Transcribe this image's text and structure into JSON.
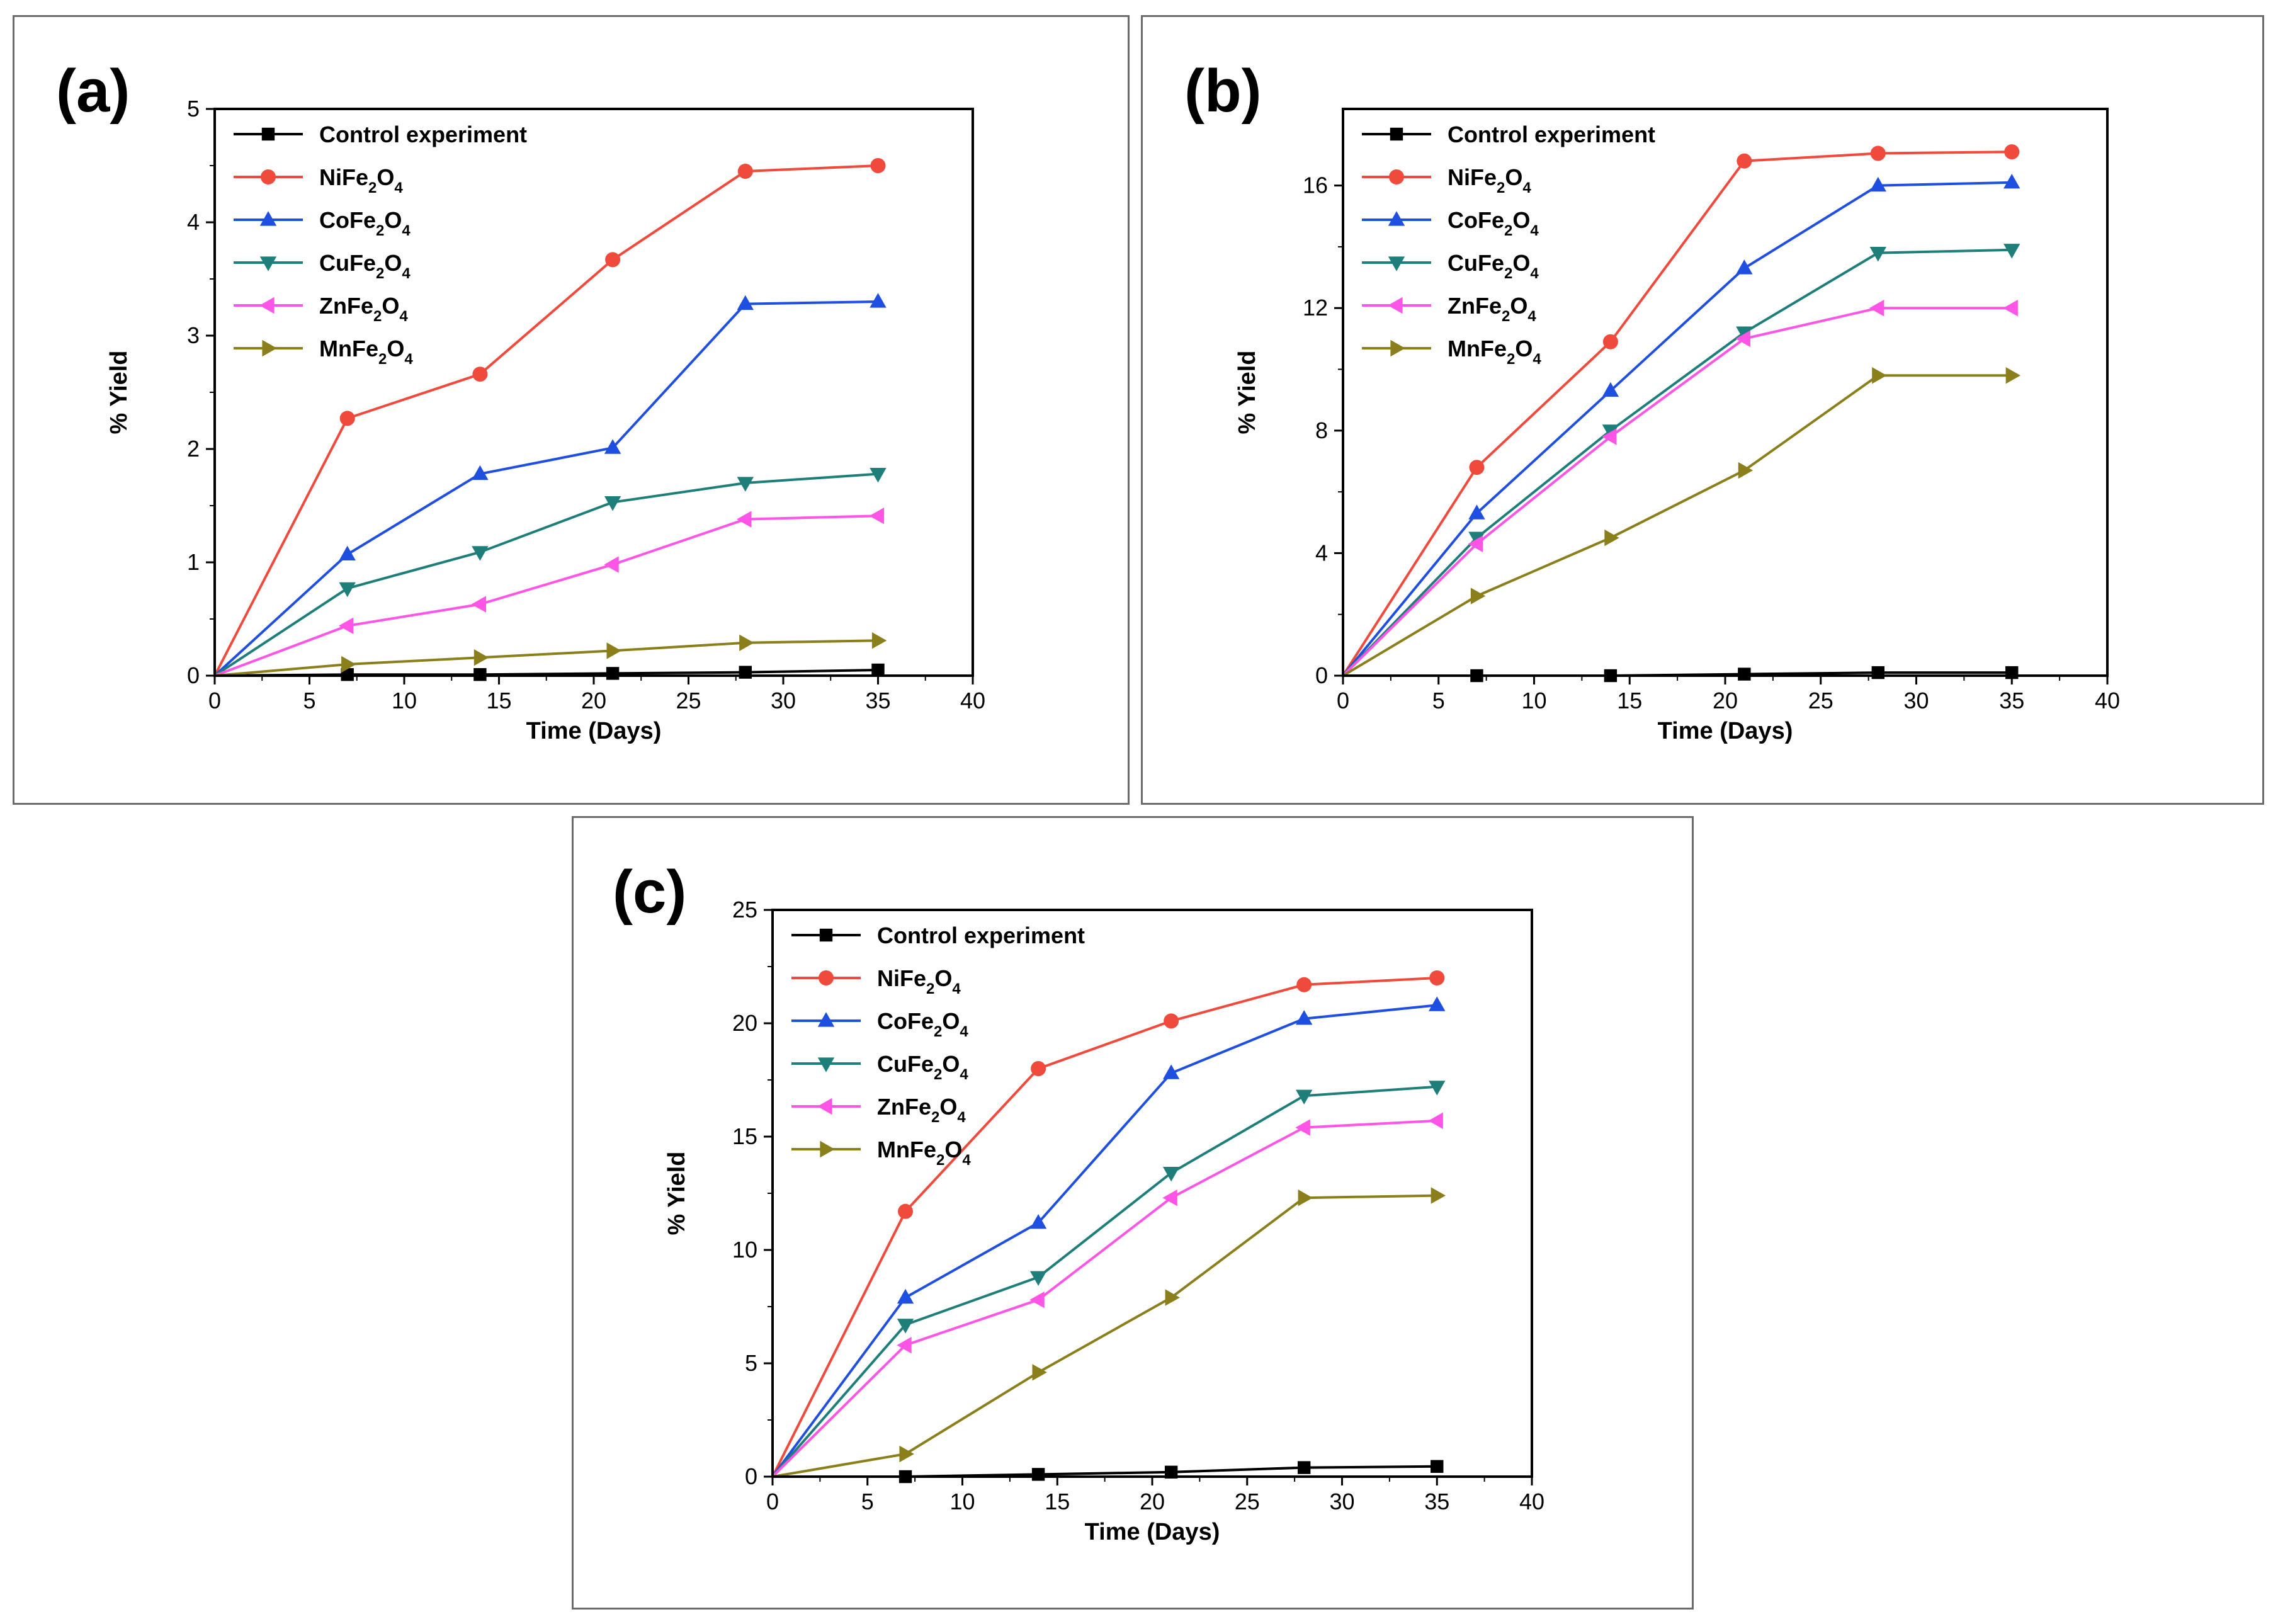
{
  "chart_data": [
    {
      "panel_label": "(a)",
      "type": "line",
      "xlabel": "Time (Days)",
      "ylabel": "% Yield",
      "xlim": [
        0,
        40
      ],
      "ylim": [
        0,
        5
      ],
      "xticks": [
        0,
        5,
        10,
        15,
        20,
        25,
        30,
        35,
        40
      ],
      "yticks": [
        0,
        1,
        2,
        3,
        4,
        5
      ],
      "x": [
        0,
        7,
        14,
        21,
        28,
        35
      ],
      "legend_position": "top-left",
      "series": [
        {
          "name": "Control experiment",
          "base": "Control experiment",
          "sub": "",
          "color": "#000000",
          "marker": "square",
          "values": [
            0,
            0.01,
            0.01,
            0.02,
            0.03,
            0.05
          ]
        },
        {
          "name": "NiFe2O4",
          "base": "NiFe",
          "sub": "2",
          "tail": "O",
          "sub2": "4",
          "color": "#f04a3c",
          "marker": "circle",
          "values": [
            0,
            2.27,
            2.66,
            3.67,
            4.45,
            4.5
          ]
        },
        {
          "name": "CoFe2O4",
          "base": "CoFe",
          "sub": "2",
          "tail": "O",
          "sub2": "4",
          "color": "#1f4fe0",
          "marker": "triangle-up",
          "values": [
            0,
            1.07,
            1.78,
            2.01,
            3.28,
            3.3
          ]
        },
        {
          "name": "CuFe2O4",
          "base": "CuFe",
          "sub": "2",
          "tail": "O",
          "sub2": "4",
          "color": "#1e7f7a",
          "marker": "triangle-down",
          "values": [
            0,
            0.77,
            1.09,
            1.53,
            1.7,
            1.78
          ]
        },
        {
          "name": "ZnFe2O4",
          "base": "ZnFe",
          "sub": "2",
          "tail": "O",
          "sub2": "4",
          "color": "#ff55e6",
          "marker": "triangle-left",
          "values": [
            0,
            0.44,
            0.63,
            0.98,
            1.38,
            1.41
          ]
        },
        {
          "name": "MnFe2O4",
          "base": "MnFe",
          "sub": "2",
          "tail": "O",
          "sub2": "4",
          "color": "#8a7f1a",
          "marker": "triangle-right",
          "values": [
            0,
            0.1,
            0.16,
            0.22,
            0.29,
            0.31
          ]
        }
      ]
    },
    {
      "panel_label": "(b)",
      "type": "line",
      "xlabel": "Time (Days)",
      "ylabel": "% Yield",
      "xlim": [
        0,
        40
      ],
      "ylim": [
        0,
        18.5
      ],
      "xticks": [
        0,
        5,
        10,
        15,
        20,
        25,
        30,
        35,
        40
      ],
      "yticks": [
        0,
        4,
        8,
        12,
        16
      ],
      "x": [
        0,
        7,
        14,
        21,
        28,
        35
      ],
      "legend_position": "top-left",
      "series": [
        {
          "name": "Control experiment",
          "base": "Control experiment",
          "sub": "",
          "color": "#000000",
          "marker": "square",
          "values": [
            0,
            0.0,
            0.0,
            0.05,
            0.1,
            0.1
          ]
        },
        {
          "name": "NiFe2O4",
          "base": "NiFe",
          "sub": "2",
          "tail": "O",
          "sub2": "4",
          "color": "#f04a3c",
          "marker": "circle",
          "values": [
            0,
            6.8,
            10.9,
            16.8,
            17.05,
            17.1
          ]
        },
        {
          "name": "CoFe2O4",
          "base": "CoFe",
          "sub": "2",
          "tail": "O",
          "sub2": "4",
          "color": "#1f4fe0",
          "marker": "triangle-up",
          "values": [
            0,
            5.3,
            9.3,
            13.3,
            16.0,
            16.1
          ]
        },
        {
          "name": "CuFe2O4",
          "base": "CuFe",
          "sub": "2",
          "tail": "O",
          "sub2": "4",
          "color": "#1e7f7a",
          "marker": "triangle-down",
          "values": [
            0,
            4.5,
            8.0,
            11.2,
            13.8,
            13.9
          ]
        },
        {
          "name": "ZnFe2O4",
          "base": "ZnFe",
          "sub": "2",
          "tail": "O",
          "sub2": "4",
          "color": "#ff55e6",
          "marker": "triangle-left",
          "values": [
            0,
            4.3,
            7.8,
            11.0,
            12.0,
            12.0
          ]
        },
        {
          "name": "MnFe2O4",
          "base": "MnFe",
          "sub": "2",
          "tail": "O",
          "sub2": "4",
          "color": "#8a7f1a",
          "marker": "triangle-right",
          "values": [
            0,
            2.6,
            4.5,
            6.7,
            9.8,
            9.8
          ]
        }
      ]
    },
    {
      "panel_label": "(c)",
      "type": "line",
      "xlabel": "Time (Days)",
      "ylabel": "% Yield",
      "xlim": [
        0,
        40
      ],
      "ylim": [
        0,
        25
      ],
      "xticks": [
        0,
        5,
        10,
        15,
        20,
        25,
        30,
        35,
        40
      ],
      "yticks": [
        0,
        5,
        10,
        15,
        20,
        25
      ],
      "x": [
        0,
        7,
        14,
        21,
        28,
        35
      ],
      "legend_position": "top-left",
      "series": [
        {
          "name": "Control experiment",
          "base": "Control experiment",
          "sub": "",
          "color": "#000000",
          "marker": "square",
          "values": [
            0,
            0.0,
            0.1,
            0.2,
            0.4,
            0.45
          ]
        },
        {
          "name": "NiFe2O4",
          "base": "NiFe",
          "sub": "2",
          "tail": "O",
          "sub2": "4",
          "color": "#f04a3c",
          "marker": "circle",
          "values": [
            0,
            11.7,
            18.0,
            20.1,
            21.7,
            22.0
          ]
        },
        {
          "name": "CoFe2O4",
          "base": "CoFe",
          "sub": "2",
          "tail": "O",
          "sub2": "4",
          "color": "#1f4fe0",
          "marker": "triangle-up",
          "values": [
            0,
            7.9,
            11.2,
            17.8,
            20.2,
            20.8
          ]
        },
        {
          "name": "CuFe2O4",
          "base": "CuFe",
          "sub": "2",
          "tail": "O",
          "sub2": "4",
          "color": "#1e7f7a",
          "marker": "triangle-down",
          "values": [
            0,
            6.7,
            8.8,
            13.4,
            16.8,
            17.2
          ]
        },
        {
          "name": "ZnFe2O4",
          "base": "ZnFe",
          "sub": "2",
          "tail": "O",
          "sub2": "4",
          "color": "#ff55e6",
          "marker": "triangle-left",
          "values": [
            0,
            5.8,
            7.8,
            12.3,
            15.4,
            15.7
          ]
        },
        {
          "name": "MnFe2O4",
          "base": "MnFe",
          "sub": "2",
          "tail": "O",
          "sub2": "4",
          "color": "#8a7f1a",
          "marker": "triangle-right",
          "values": [
            0,
            1.0,
            4.6,
            7.9,
            12.3,
            12.4
          ]
        }
      ]
    }
  ]
}
